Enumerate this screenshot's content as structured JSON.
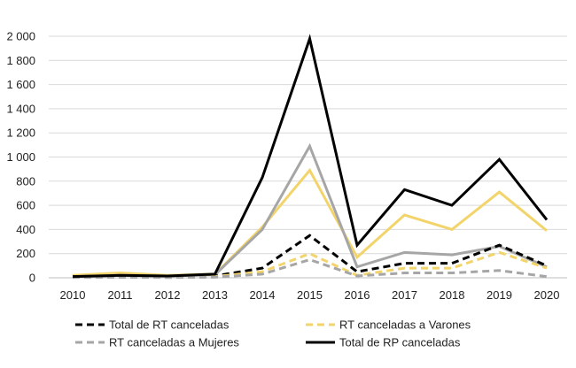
{
  "chart_data": {
    "type": "line",
    "title": "",
    "xlabel": "",
    "ylabel": "",
    "x": [
      "2010",
      "2011",
      "2012",
      "2013",
      "2014",
      "2015",
      "2016",
      "2017",
      "2018",
      "2019",
      "2020"
    ],
    "ylim": [
      0,
      2000
    ],
    "yticks": [
      0,
      200,
      400,
      600,
      800,
      1000,
      1200,
      1400,
      1600,
      1800,
      2000
    ],
    "ytick_labels": [
      "0",
      "200",
      "400",
      "600",
      "800",
      "1 000",
      "1 200",
      "1 400",
      "1 600",
      "1 800",
      "2 000"
    ],
    "grid": true,
    "legend_position": "bottom",
    "series": [
      {
        "name": "",
        "color": "#f2d46a",
        "style": "solid",
        "values": [
          20,
          40,
          20,
          30,
          420,
          890,
          170,
          520,
          400,
          710,
          390
        ]
      },
      {
        "name": "",
        "color": "#a6a6a6",
        "style": "solid",
        "values": [
          10,
          20,
          15,
          25,
          400,
          1090,
          90,
          210,
          190,
          260,
          90
        ]
      },
      {
        "name": "Total de RT canceladas",
        "color": "#000000",
        "style": "dashed",
        "values": [
          5,
          10,
          5,
          15,
          80,
          350,
          50,
          120,
          120,
          270,
          100
        ]
      },
      {
        "name": "RT canceladas a Varones",
        "color": "#f2d46a",
        "style": "dashed",
        "values": [
          5,
          8,
          5,
          10,
          50,
          200,
          20,
          80,
          80,
          210,
          80
        ]
      },
      {
        "name": "RT canceladas a Mujeres",
        "color": "#a6a6a6",
        "style": "dashed",
        "values": [
          2,
          4,
          2,
          5,
          30,
          150,
          15,
          40,
          40,
          60,
          10
        ]
      },
      {
        "name": "Total de RP canceladas",
        "color": "#000000",
        "style": "solid",
        "values": [
          10,
          20,
          15,
          30,
          830,
          1980,
          270,
          730,
          600,
          980,
          480
        ]
      }
    ]
  }
}
